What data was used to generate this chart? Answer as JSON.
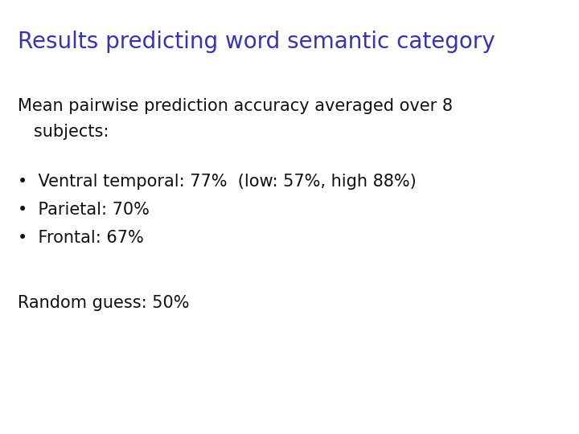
{
  "title": "Results predicting word semantic category",
  "title_color": "#3333bb",
  "title_fontsize": 20,
  "title_bold": false,
  "body_color": "#111111",
  "body_fontsize": 15,
  "background_color": "#ffffff",
  "subtitle_line1": "Mean pairwise prediction accuracy averaged over 8",
  "subtitle_line2": "   subjects:",
  "bullet_points": [
    "Ventral temporal: 77%  (low: 57%, high 88%)",
    "Parietal: 70%",
    "Frontal: 67%"
  ],
  "footer": "Random guess: 50%"
}
